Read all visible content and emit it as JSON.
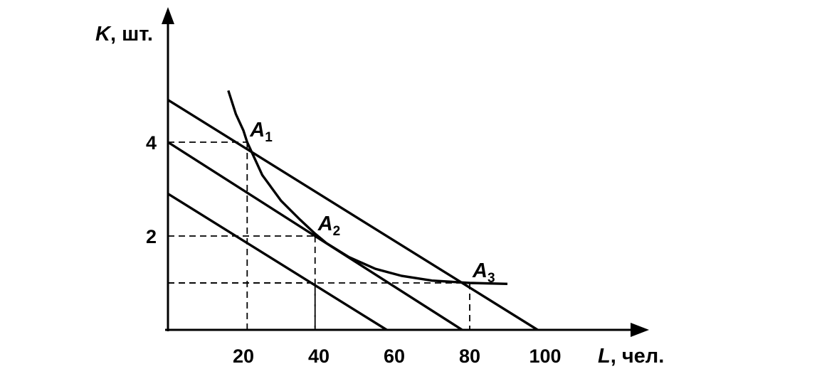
{
  "chart_data": {
    "type": "line",
    "xlabel": {
      "var": "L",
      "unit": ", чел."
    },
    "ylabel": {
      "var": "K",
      "unit": ", шт."
    },
    "x_ticks": [
      "20",
      "40",
      "60",
      "80",
      "100"
    ],
    "y_ticks": [
      "2",
      "4"
    ],
    "xlim": [
      0,
      125
    ],
    "ylim": [
      0,
      7
    ],
    "series": [
      {
        "kind": "isocost",
        "points": [
          [
            0,
            4.9
          ],
          [
            98,
            0
          ]
        ]
      },
      {
        "kind": "isocost",
        "points": [
          [
            0,
            4.0
          ],
          [
            78,
            0
          ]
        ]
      },
      {
        "kind": "isocost",
        "points": [
          [
            0,
            2.9
          ],
          [
            58,
            0
          ]
        ]
      },
      {
        "kind": "isoquant",
        "points": [
          [
            16,
            5.1
          ],
          [
            18,
            4.6
          ],
          [
            20,
            4.25
          ],
          [
            21,
            4.0
          ],
          [
            25,
            3.3
          ],
          [
            30,
            2.75
          ],
          [
            35,
            2.35
          ],
          [
            39,
            2.05
          ],
          [
            42,
            1.85
          ],
          [
            48,
            1.55
          ],
          [
            55,
            1.3
          ],
          [
            62,
            1.15
          ],
          [
            70,
            1.05
          ],
          [
            80,
            1.0
          ],
          [
            90,
            0.98
          ]
        ]
      }
    ],
    "points": [
      {
        "letter": "A",
        "sub": "1",
        "x": 21,
        "y": 4.0
      },
      {
        "letter": "A",
        "sub": "2",
        "x": 39,
        "y": 2.0
      },
      {
        "letter": "A",
        "sub": "3",
        "x": 80,
        "y": 1.0
      }
    ],
    "guides": [
      {
        "x": 21,
        "y": 4.0
      },
      {
        "x": 39,
        "y": 2.0
      },
      {
        "x": 80,
        "y": 1.0
      },
      {
        "x": 39,
        "y": 1.0
      }
    ]
  }
}
